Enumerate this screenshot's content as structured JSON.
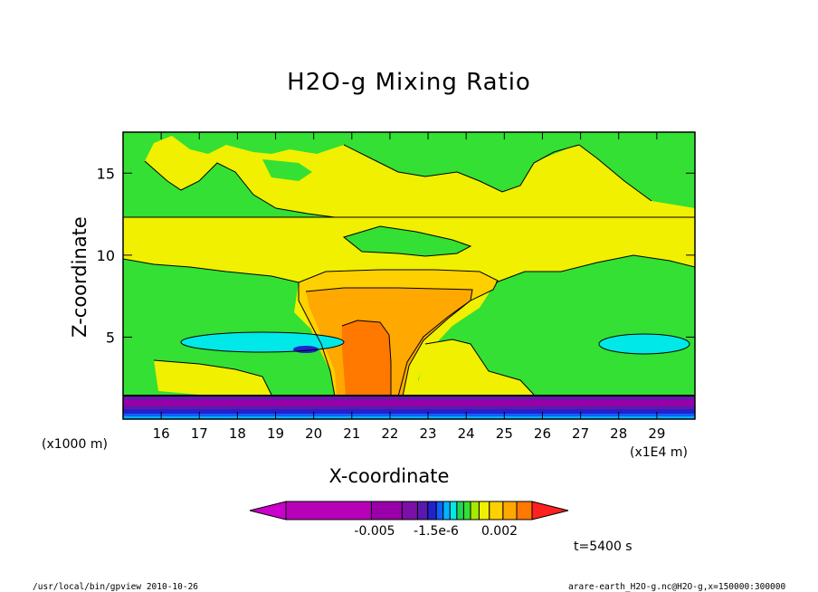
{
  "chart_data": {
    "type": "heatmap",
    "title": "H2O-g Mixing Ratio",
    "xlabel": "X-coordinate",
    "ylabel": "Z-coordinate",
    "x_unit_label": "(x1000 m)",
    "x_unit_label_right": "(x1E4 m)",
    "x_ticks": [
      "16",
      "17",
      "18",
      "19",
      "20",
      "21",
      "22",
      "23",
      "24",
      "25",
      "26",
      "27",
      "28",
      "29"
    ],
    "y_ticks": [
      "5",
      "10",
      "15"
    ],
    "xlim": [
      150000,
      300000
    ],
    "ylim": [
      0,
      17.5
    ],
    "colorbar": {
      "tick_labels": [
        "-0.005",
        "-1.5e-6",
        "0.002"
      ],
      "colors": [
        "#cc00cc",
        "#b800b8",
        "#9900aa",
        "#7a10a8",
        "#5a18b0",
        "#2222cc",
        "#1060ff",
        "#00b4ff",
        "#00e8e8",
        "#22d455",
        "#33e033",
        "#a8e800",
        "#f0f000",
        "#ffd000",
        "#ffa800",
        "#ff7800",
        "#ff2020"
      ]
    },
    "time_label": "t=5400 s",
    "footer_left": "/usr/local/bin/gpview  2010-10-26",
    "footer_right": "arare-earth_H2O-g.nc@H2O-g,x=150000:300000"
  }
}
